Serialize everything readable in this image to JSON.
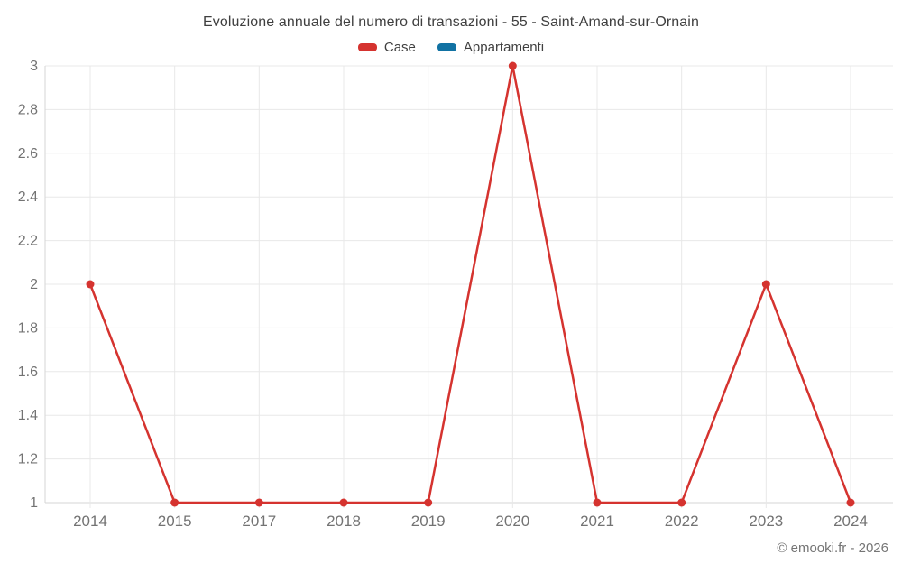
{
  "chart_data": {
    "type": "line",
    "title": "Evoluzione annuale del numero di transazioni - 55 - Saint-Amand-sur-Ornain",
    "categories": [
      "2014",
      "2015",
      "2017",
      "2018",
      "2019",
      "2020",
      "2021",
      "2022",
      "2023",
      "2024"
    ],
    "series": [
      {
        "name": "Case",
        "color": "#d5332f",
        "values": [
          2,
          1,
          1,
          1,
          1,
          3,
          1,
          1,
          2,
          1
        ]
      },
      {
        "name": "Appartamenti",
        "color": "#1172a3",
        "values": []
      }
    ],
    "xlabel": "",
    "ylabel": "",
    "ylim": [
      1,
      3
    ],
    "yticks": [
      "1",
      "1.2",
      "1.4",
      "1.6",
      "1.8",
      "2",
      "2.2",
      "2.4",
      "2.6",
      "2.8",
      "3"
    ],
    "grid": true,
    "legend_position": "top"
  },
  "colors": {
    "grid_line": "#e8e8e8",
    "axis_line": "#d6d6d6",
    "axis_label": "#737373",
    "title_text": "#3f3f3f"
  },
  "footer": {
    "copyright": "© emooki.fr - 2026"
  }
}
